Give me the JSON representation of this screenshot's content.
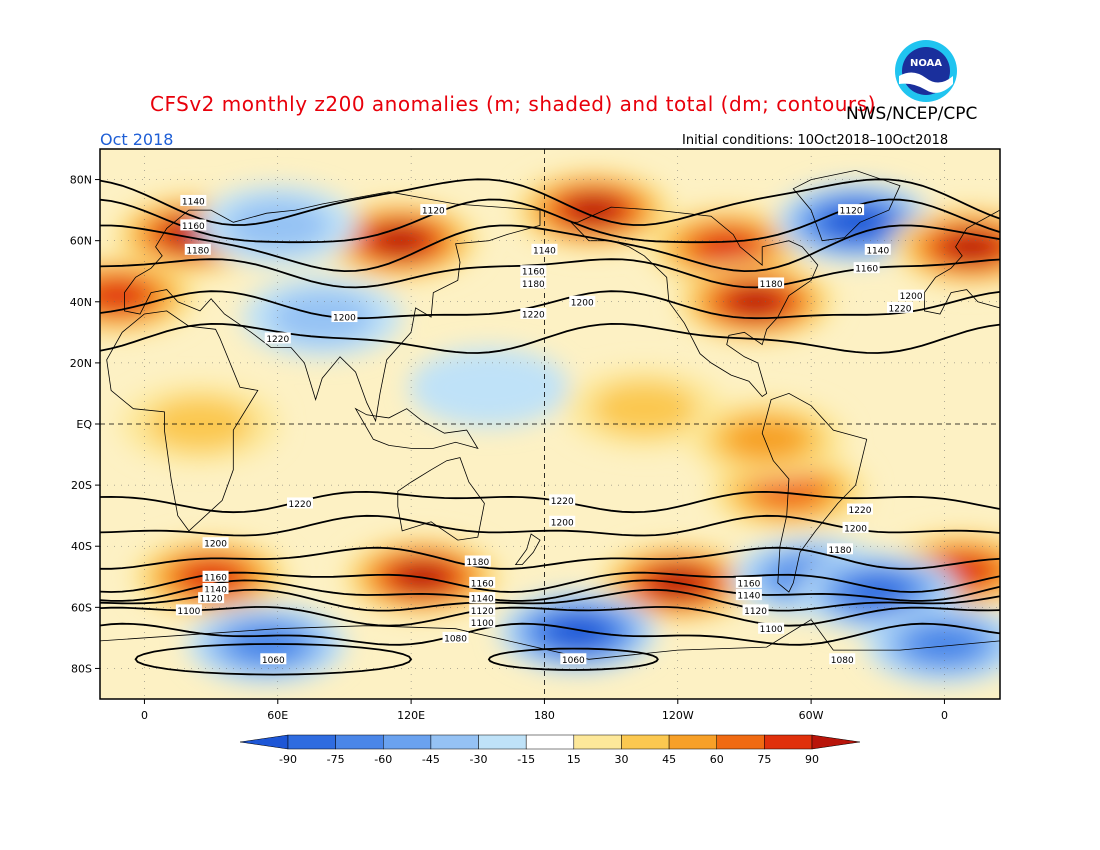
{
  "title": "CFSv2 monthly z200 anomalies (m; shaded) and total (dm; contours)",
  "agency": "NWS/NCEP/CPC",
  "valid_month": "Oct 2018",
  "initial_conditions": "Initial conditions: 10Oct2018–10Oct2018",
  "logo_text": "NOAA",
  "colors": {
    "frame": "#000000",
    "contour": "#000000",
    "coast": "#000000",
    "title": "#e8000b",
    "month": "#1f5fd6"
  },
  "map": {
    "projection": "cylindrical equidistant",
    "lon_range": [
      -20,
      385
    ],
    "lat_range": [
      -90,
      90
    ],
    "lat_ticks": [
      {
        "lat": 80,
        "label": "80N"
      },
      {
        "lat": 60,
        "label": "60N"
      },
      {
        "lat": 40,
        "label": "40N"
      },
      {
        "lat": 20,
        "label": "20N"
      },
      {
        "lat": 0,
        "label": "EQ"
      },
      {
        "lat": -20,
        "label": "20S"
      },
      {
        "lat": -40,
        "label": "40S"
      },
      {
        "lat": -60,
        "label": "60S"
      },
      {
        "lat": -80,
        "label": "80S"
      }
    ],
    "lon_ticks": [
      {
        "lon": 0,
        "label": "0"
      },
      {
        "lon": 60,
        "label": "60E"
      },
      {
        "lon": 120,
        "label": "120E"
      },
      {
        "lon": 180,
        "label": "180"
      },
      {
        "lon": 240,
        "label": "120W"
      },
      {
        "lon": 300,
        "label": "60W"
      },
      {
        "lon": 360,
        "label": "0"
      }
    ],
    "grid_lines": {
      "lats": [
        0
      ],
      "lons": [
        180
      ]
    }
  },
  "colorbar": {
    "labels": [
      "-90",
      "-75",
      "-60",
      "-45",
      "-30",
      "-15",
      "15",
      "30",
      "45",
      "60",
      "75",
      "90"
    ],
    "colors": [
      "#1d56d6",
      "#2f6ce0",
      "#4a86e8",
      "#6aa2ef",
      "#95c2f4",
      "#bfe2f8",
      "#ffffff",
      "#fde89a",
      "#fbc850",
      "#f7a028",
      "#f06a12",
      "#e0300c",
      "#b8140a"
    ]
  },
  "chart_data": {
    "type": "heatmap",
    "variable": "z200",
    "anomaly_units": "m",
    "contour_units": "dm",
    "anomaly_centers": [
      {
        "lon": 22,
        "lat": 62,
        "value": 90
      },
      {
        "lon": 115,
        "lat": 60,
        "value": 90
      },
      {
        "lon": 202,
        "lat": 70,
        "value": 90
      },
      {
        "lon": 262,
        "lat": 58,
        "value": 75
      },
      {
        "lon": 275,
        "lat": 40,
        "value": 90
      },
      {
        "lon": 320,
        "lat": 66,
        "value": -90
      },
      {
        "lon": 372,
        "lat": 58,
        "value": 90
      },
      {
        "lon": -12,
        "lat": 42,
        "value": 75
      },
      {
        "lon": 60,
        "lat": 65,
        "value": -30
      },
      {
        "lon": 80,
        "lat": 35,
        "value": -30
      },
      {
        "lon": 155,
        "lat": 12,
        "value": -15
      },
      {
        "lon": 30,
        "lat": -50,
        "value": 75
      },
      {
        "lon": 125,
        "lat": -50,
        "value": 90
      },
      {
        "lon": 240,
        "lat": -52,
        "value": 90
      },
      {
        "lon": 368,
        "lat": -48,
        "value": 75
      },
      {
        "lon": 300,
        "lat": -50,
        "value": -60
      },
      {
        "lon": 330,
        "lat": -55,
        "value": -75
      },
      {
        "lon": 195,
        "lat": -68,
        "value": -90
      },
      {
        "lon": 55,
        "lat": -72,
        "value": -60
      },
      {
        "lon": 360,
        "lat": -72,
        "value": -60
      },
      {
        "lon": 290,
        "lat": -22,
        "value": 60
      },
      {
        "lon": 225,
        "lat": 5,
        "value": 30
      },
      {
        "lon": 25,
        "lat": 0,
        "value": 30
      },
      {
        "lon": 280,
        "lat": -5,
        "value": 45
      }
    ],
    "contours": [
      {
        "value": 1220,
        "hemisphere": "N",
        "base_lat": 28
      },
      {
        "value": 1200,
        "hemisphere": "N",
        "base_lat": 38
      },
      {
        "value": 1180,
        "hemisphere": "N",
        "base_lat": 50
      },
      {
        "value": 1160,
        "hemisphere": "N",
        "base_lat": 58
      },
      {
        "value": 1140,
        "hemisphere": "N",
        "base_lat": 65
      },
      {
        "value": 1120,
        "hemisphere": "N",
        "base_lat": 73
      },
      {
        "value": 1220,
        "hemisphere": "S",
        "base_lat": -25
      },
      {
        "value": 1200,
        "hemisphere": "S",
        "base_lat": -34
      },
      {
        "value": 1180,
        "hemisphere": "S",
        "base_lat": -44
      },
      {
        "value": 1160,
        "hemisphere": "S",
        "base_lat": -51
      },
      {
        "value": 1140,
        "hemisphere": "S",
        "base_lat": -55
      },
      {
        "value": 1120,
        "hemisphere": "S",
        "base_lat": -58
      },
      {
        "value": 1100,
        "hemisphere": "S",
        "base_lat": -62
      },
      {
        "value": 1080,
        "hemisphere": "S",
        "base_lat": -69
      },
      {
        "value": 1060,
        "hemisphere": "S",
        "base_lat": -80
      }
    ],
    "contour_labels": [
      {
        "text": "1140",
        "lon": 22,
        "lat": 73
      },
      {
        "text": "1160",
        "lon": 22,
        "lat": 65
      },
      {
        "text": "1180",
        "lon": 24,
        "lat": 57
      },
      {
        "text": "1120",
        "lon": 130,
        "lat": 70
      },
      {
        "text": "1140",
        "lon": 180,
        "lat": 57
      },
      {
        "text": "1160",
        "lon": 175,
        "lat": 50
      },
      {
        "text": "1180",
        "lon": 175,
        "lat": 46
      },
      {
        "text": "1200",
        "lon": 90,
        "lat": 35
      },
      {
        "text": "1200",
        "lon": 197,
        "lat": 40
      },
      {
        "text": "1220",
        "lon": 175,
        "lat": 36
      },
      {
        "text": "1220",
        "lon": 60,
        "lat": 28
      },
      {
        "text": "1120",
        "lon": 318,
        "lat": 70
      },
      {
        "text": "1140",
        "lon": 330,
        "lat": 57
      },
      {
        "text": "1160",
        "lon": 325,
        "lat": 51
      },
      {
        "text": "1180",
        "lon": 282,
        "lat": 46
      },
      {
        "text": "1200",
        "lon": 345,
        "lat": 42
      },
      {
        "text": "1220",
        "lon": 340,
        "lat": 38
      },
      {
        "text": "1220",
        "lon": 70,
        "lat": -26
      },
      {
        "text": "1220",
        "lon": 188,
        "lat": -25
      },
      {
        "text": "1200",
        "lon": 188,
        "lat": -32
      },
      {
        "text": "1220",
        "lon": 322,
        "lat": -28
      },
      {
        "text": "1200",
        "lon": 320,
        "lat": -34
      },
      {
        "text": "1180",
        "lon": 313,
        "lat": -41
      },
      {
        "text": "1200",
        "lon": 32,
        "lat": -39
      },
      {
        "text": "1180",
        "lon": 150,
        "lat": -45
      },
      {
        "text": "1160",
        "lon": 32,
        "lat": -50
      },
      {
        "text": "1140",
        "lon": 32,
        "lat": -54
      },
      {
        "text": "1120",
        "lon": 30,
        "lat": -57
      },
      {
        "text": "1100",
        "lon": 20,
        "lat": -61
      },
      {
        "text": "1160",
        "lon": 152,
        "lat": -52
      },
      {
        "text": "1140",
        "lon": 152,
        "lat": -57
      },
      {
        "text": "1120",
        "lon": 152,
        "lat": -61
      },
      {
        "text": "1100",
        "lon": 152,
        "lat": -65
      },
      {
        "text": "1080",
        "lon": 140,
        "lat": -70
      },
      {
        "text": "1160",
        "lon": 272,
        "lat": -52
      },
      {
        "text": "1140",
        "lon": 272,
        "lat": -56
      },
      {
        "text": "1120",
        "lon": 275,
        "lat": -61
      },
      {
        "text": "1100",
        "lon": 282,
        "lat": -67
      },
      {
        "text": "1080",
        "lon": 314,
        "lat": -77
      },
      {
        "text": "1060",
        "lon": 58,
        "lat": -77
      },
      {
        "text": "1060",
        "lon": 193,
        "lat": -77
      }
    ]
  }
}
